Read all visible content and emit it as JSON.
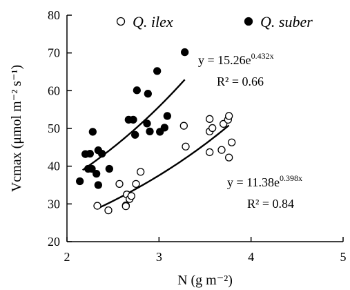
{
  "chart_data": {
    "type": "scatter",
    "title": "",
    "xlabel": "N (g m⁻²)",
    "ylabel": "Vcmax (μmol m⁻² s⁻¹)",
    "xlim": [
      2,
      5
    ],
    "ylim": [
      20,
      80
    ],
    "x_ticks": [
      2,
      3,
      4,
      5
    ],
    "y_ticks": [
      20,
      30,
      40,
      50,
      60,
      70,
      80
    ],
    "grid": false,
    "legend_position": "top",
    "series": [
      {
        "name": "Q. ilex",
        "marker": "open-circle",
        "color": "#000000",
        "points": [
          [
            2.33,
            29.5
          ],
          [
            2.45,
            28.3
          ],
          [
            2.57,
            35.3
          ],
          [
            2.64,
            29.6
          ],
          [
            2.64,
            29.4
          ],
          [
            2.65,
            32.5
          ],
          [
            2.68,
            31.3
          ],
          [
            2.7,
            32.1
          ],
          [
            2.75,
            35.3
          ],
          [
            2.8,
            38.5
          ],
          [
            3.27,
            50.7
          ],
          [
            3.29,
            45.2
          ],
          [
            3.55,
            52.5
          ],
          [
            3.55,
            49.2
          ],
          [
            3.55,
            43.7
          ],
          [
            3.58,
            50.1
          ],
          [
            3.68,
            44.3
          ],
          [
            3.7,
            51.2
          ],
          [
            3.75,
            52.3
          ],
          [
            3.76,
            53.3
          ],
          [
            3.76,
            42.3
          ],
          [
            3.79,
            46.3
          ]
        ],
        "fit": {
          "a": 11.38,
          "b": 0.398,
          "x_range": [
            2.33,
            3.76
          ],
          "equation": "y = 11.38e",
          "exponent": "0.398x",
          "r2": "R² = 0.84"
        }
      },
      {
        "name": "Q. suber",
        "marker": "filled-circle",
        "color": "#000000",
        "points": [
          [
            2.14,
            36.0
          ],
          [
            2.2,
            43.2
          ],
          [
            2.23,
            39.3
          ],
          [
            2.25,
            43.3
          ],
          [
            2.27,
            39.3
          ],
          [
            2.28,
            49.1
          ],
          [
            2.32,
            38.0
          ],
          [
            2.34,
            35.0
          ],
          [
            2.34,
            44.2
          ],
          [
            2.38,
            43.3
          ],
          [
            2.46,
            39.3
          ],
          [
            2.67,
            52.3
          ],
          [
            2.72,
            52.3
          ],
          [
            2.74,
            48.3
          ],
          [
            2.76,
            60.1
          ],
          [
            2.87,
            51.3
          ],
          [
            2.88,
            59.2
          ],
          [
            2.9,
            49.2
          ],
          [
            2.98,
            65.2
          ],
          [
            3.01,
            49.1
          ],
          [
            3.06,
            50.2
          ],
          [
            3.09,
            53.3
          ],
          [
            3.28,
            70.2
          ]
        ],
        "fit": {
          "a": 15.26,
          "b": 0.432,
          "x_range": [
            2.17,
            3.28
          ],
          "equation": "y = 15.26e",
          "exponent": "0.432x",
          "r2": "R² = 0.66"
        }
      }
    ]
  }
}
